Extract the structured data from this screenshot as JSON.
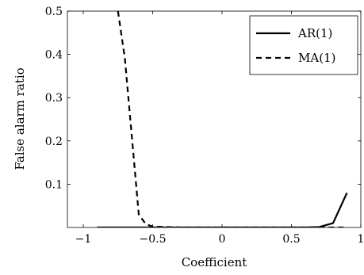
{
  "chart_data": {
    "type": "line",
    "xlabel": "Coefficient",
    "ylabel": "False alarm ratio",
    "xlim": [
      -1,
      1
    ],
    "ylim": [
      0,
      0.5
    ],
    "x_ticks": [
      -1,
      -0.5,
      0,
      0.5,
      1
    ],
    "x_tick_labels": [
      "−1",
      "−0.5",
      "0",
      "0.5",
      "1"
    ],
    "y_ticks": [
      0.1,
      0.2,
      0.3,
      0.4,
      0.5
    ],
    "y_tick_labels": [
      "0.1",
      "0.2",
      "0.3",
      "0.4",
      "0.5"
    ],
    "grid": false,
    "legend_position": "top-right",
    "series": [
      {
        "name": "AR(1)",
        "style": "solid",
        "color": "#000000",
        "x": [
          -0.9,
          -0.8,
          -0.7,
          -0.6,
          -0.5,
          -0.4,
          -0.3,
          -0.2,
          -0.1,
          0,
          0.1,
          0.2,
          0.3,
          0.4,
          0.5,
          0.6,
          0.7,
          0.8,
          0.9
        ],
        "y": [
          0,
          0,
          0,
          0,
          0,
          0,
          0,
          0,
          0,
          0,
          0,
          0,
          0,
          0,
          0,
          0,
          0.001,
          0.01,
          0.08
        ]
      },
      {
        "name": "MA(1)",
        "style": "dashed",
        "color": "#000000",
        "x": [
          -0.75,
          -0.7,
          -0.6,
          -0.55,
          -0.5,
          -0.4,
          -0.3,
          -0.2,
          -0.1,
          0,
          0.1,
          0.2,
          0.3,
          0.4,
          0.5,
          0.6,
          0.7,
          0.8,
          0.9
        ],
        "y": [
          0.5,
          0.39,
          0.03,
          0.008,
          0.002,
          0.001,
          0,
          0,
          0,
          0,
          0,
          0,
          0,
          0,
          0,
          0,
          0,
          0,
          0
        ]
      }
    ]
  }
}
